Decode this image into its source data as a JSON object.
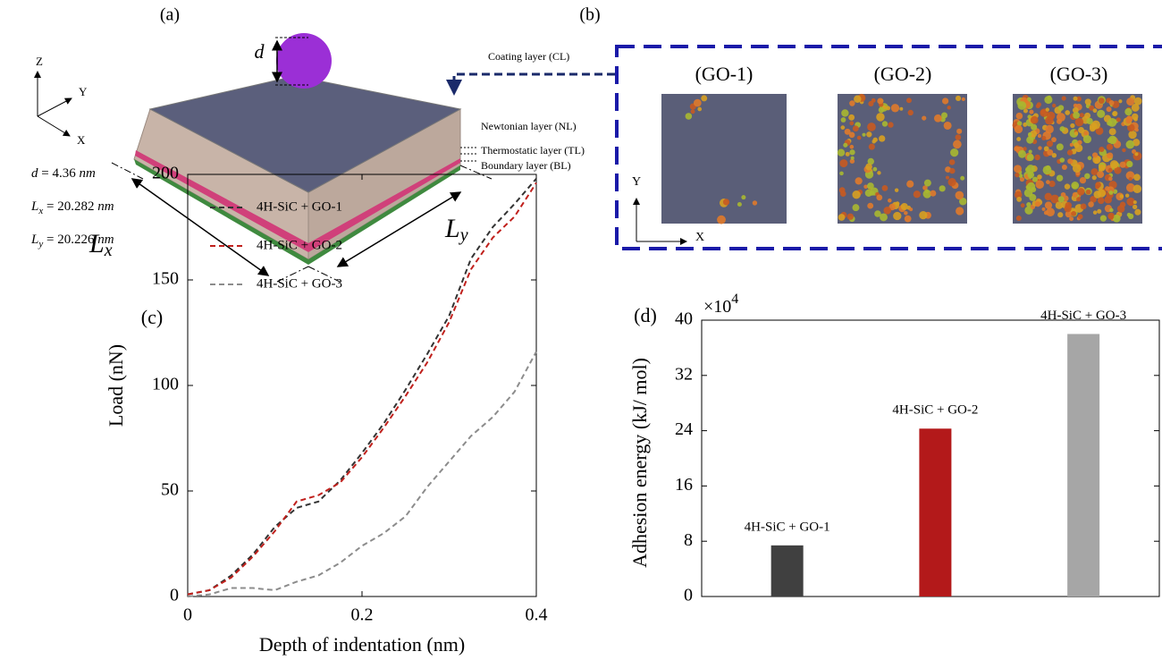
{
  "panel_a": {
    "label": "(a)",
    "d_symbol": "d",
    "layers": [
      "Coating layer (CL)",
      "Newtonian layer (NL)",
      "Thermostatic layer (TL)",
      "Boundary layer (BL)"
    ],
    "axes": {
      "z": "Z",
      "y": "Y",
      "x": "X"
    },
    "dimensions": [
      {
        "symbol": "d",
        "sub": "",
        "rest": " = 4.36 ",
        "unit": "nm"
      },
      {
        "symbol": "L",
        "sub": "x",
        "rest": " = 20.282 ",
        "unit": "nm"
      },
      {
        "symbol": "L",
        "sub": "y",
        "rest": " = 20.226 ",
        "unit": "nm"
      }
    ],
    "lx": {
      "symbol": "L",
      "sub": "x"
    },
    "ly": {
      "symbol": "L",
      "sub": "y"
    }
  },
  "panel_b": {
    "label": "(b)",
    "titles": [
      "(GO-1)",
      "(GO-2)",
      "(GO-3)"
    ],
    "axes": {
      "y": "Y",
      "x": "X"
    }
  },
  "chart_data": [
    {
      "type": "line",
      "panel_label": "(c)",
      "x_label": "Depth of indentation (nm)",
      "y_label": "Load (nN)",
      "x": [
        0,
        0.025,
        0.05,
        0.075,
        0.1,
        0.125,
        0.15,
        0.175,
        0.2,
        0.225,
        0.25,
        0.275,
        0.3,
        0.325,
        0.35,
        0.375,
        0.4
      ],
      "series": [
        {
          "name": "4H-SiC  + GO-1",
          "color": "#333333",
          "values": [
            1,
            3,
            10,
            20,
            33,
            42,
            45,
            55,
            68,
            82,
            98,
            115,
            133,
            160,
            175,
            186,
            198
          ]
        },
        {
          "name": "4H-SiC  + GO-2",
          "color": "#c0201c",
          "values": [
            1,
            3,
            9,
            19,
            31,
            45,
            48,
            54,
            66,
            80,
            95,
            111,
            130,
            155,
            170,
            180,
            196
          ]
        },
        {
          "name": "4H-SiC  + GO-3",
          "color": "#8c8c8c",
          "values": [
            0,
            1,
            4,
            4,
            3,
            7,
            10,
            16,
            24,
            30,
            38,
            52,
            64,
            76,
            85,
            97,
            116
          ]
        }
      ],
      "xlim": [
        0,
        0.4
      ],
      "xticks": [
        0,
        0.2,
        0.4
      ],
      "ylim": [
        0,
        200
      ],
      "yticks": [
        0,
        50,
        100,
        150,
        200
      ],
      "legend": "upper left"
    },
    {
      "type": "bar",
      "panel_label": "(d)",
      "y_label": "Adhesion energy (kJ/ mol)",
      "y_multiplier": "×10",
      "y_multiplier_exp": "4",
      "categories": [
        "4H-SiC  + GO-1",
        "4H-SiC  + GO-2",
        "4H-SiC  + GO-3"
      ],
      "values": [
        7.4,
        24.3,
        38
      ],
      "colors": [
        "#404040",
        "#b3191a",
        "#a6a6a6"
      ],
      "ylim": [
        0,
        40
      ],
      "yticks": [
        0,
        8,
        16,
        24,
        32,
        40
      ]
    }
  ]
}
